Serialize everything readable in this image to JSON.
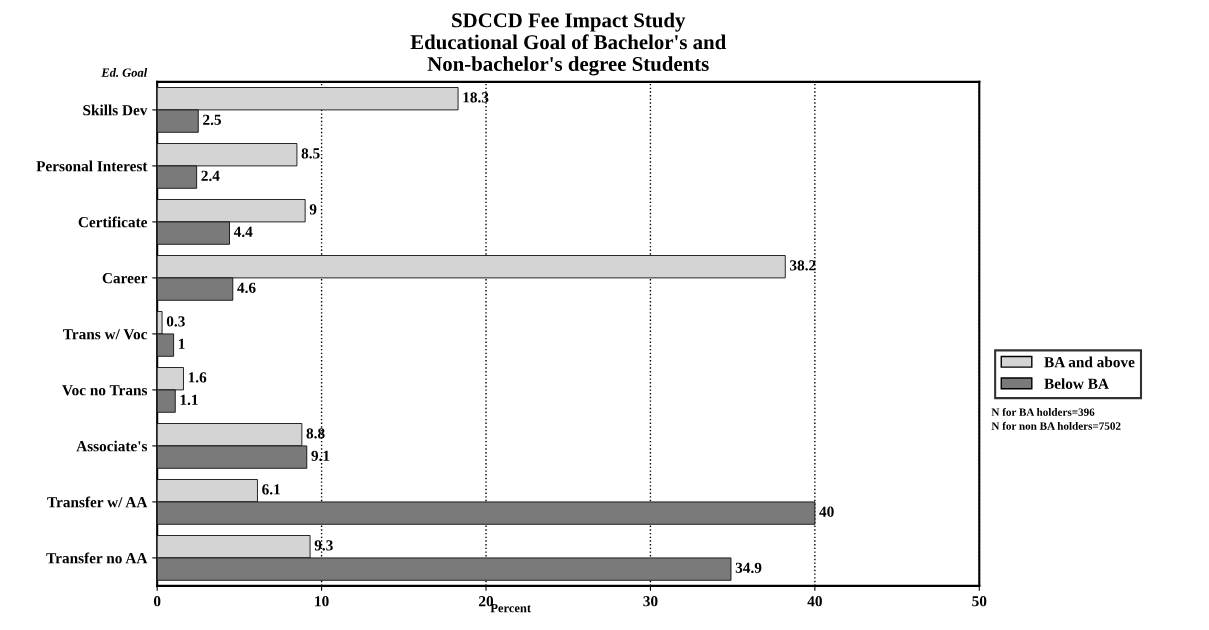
{
  "chart_data": {
    "type": "bar",
    "orientation": "horizontal",
    "title": "SDCCD Fee Impact Study\nEducational Goal of Bachelor's and\nNon-bachelor's degree Students",
    "xlabel": "Percent",
    "ylabel": "Ed. Goal",
    "categories": [
      "Skills Dev",
      "Personal Interest",
      "Certificate",
      "Career",
      "Trans w/ Voc",
      "Voc no Trans",
      "Associate's",
      "Transfer w/ AA",
      "Transfer no AA"
    ],
    "series": [
      {
        "name": "BA and above",
        "color": "#d4d4d4",
        "values": [
          18.3,
          8.5,
          9,
          38.2,
          0.3,
          1.6,
          8.8,
          6.1,
          9.3
        ]
      },
      {
        "name": "Below BA",
        "color": "#7a7a7a",
        "values": [
          2.5,
          2.4,
          4.4,
          4.6,
          1,
          1.1,
          9.1,
          40,
          34.9
        ]
      }
    ],
    "xlim": [
      0,
      50
    ],
    "xticks": [
      0,
      10,
      20,
      30,
      40,
      50
    ],
    "grid": "x",
    "legend": "right",
    "data_labels": true,
    "annotations": [
      "N for BA holders=396",
      "N for non BA holders=7502"
    ]
  }
}
